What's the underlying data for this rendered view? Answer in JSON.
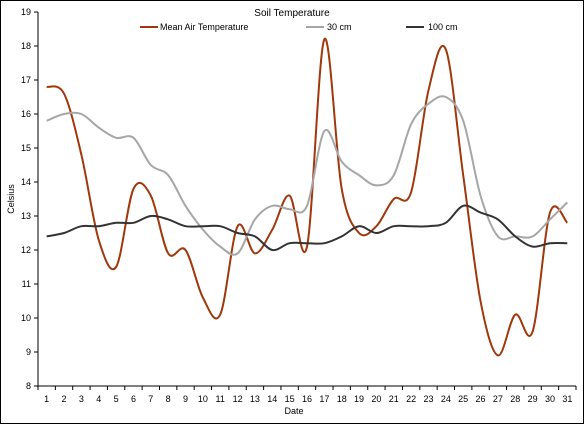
{
  "chart_data": {
    "type": "line",
    "title": "Soil Temperature",
    "xlabel": "Date",
    "ylabel": "Celsius",
    "x": [
      1,
      2,
      3,
      4,
      5,
      6,
      7,
      8,
      9,
      10,
      11,
      12,
      13,
      14,
      15,
      16,
      17,
      18,
      19,
      20,
      21,
      22,
      23,
      24,
      25,
      26,
      27,
      28,
      29,
      30,
      31
    ],
    "xlim": [
      0.5,
      31.5
    ],
    "ylim": [
      8,
      19
    ],
    "yticks": [
      8,
      9,
      10,
      11,
      12,
      13,
      14,
      15,
      16,
      17,
      18,
      19
    ],
    "grid": false,
    "legend": "top",
    "series": [
      {
        "name": "Mean Air Temperature",
        "color": "#a0380c",
        "values": [
          16.8,
          16.6,
          14.8,
          12.3,
          11.5,
          13.8,
          13.6,
          11.9,
          12.0,
          10.6,
          10.1,
          12.7,
          11.9,
          12.6,
          13.6,
          12.1,
          18.2,
          13.8,
          12.5,
          12.7,
          13.5,
          13.7,
          16.7,
          17.9,
          14.2,
          10.5,
          8.9,
          10.1,
          9.6,
          13.1,
          12.8
        ]
      },
      {
        "name": "30 cm",
        "color": "#a6a6a6",
        "values": [
          15.8,
          16.0,
          16.0,
          15.6,
          15.3,
          15.3,
          14.5,
          14.2,
          13.3,
          12.6,
          12.1,
          11.9,
          12.9,
          13.3,
          13.2,
          13.3,
          15.5,
          14.6,
          14.2,
          13.9,
          14.2,
          15.7,
          16.3,
          16.5,
          15.8,
          13.6,
          12.4,
          12.4,
          12.4,
          12.9,
          13.4
        ]
      },
      {
        "name": "100 cm",
        "color": "#333333",
        "values": [
          12.4,
          12.5,
          12.7,
          12.7,
          12.8,
          12.8,
          13.0,
          12.9,
          12.7,
          12.7,
          12.7,
          12.5,
          12.4,
          12.0,
          12.2,
          12.2,
          12.2,
          12.4,
          12.7,
          12.5,
          12.7,
          12.7,
          12.7,
          12.8,
          13.3,
          13.1,
          12.9,
          12.4,
          12.1,
          12.2,
          12.2
        ]
      }
    ]
  }
}
